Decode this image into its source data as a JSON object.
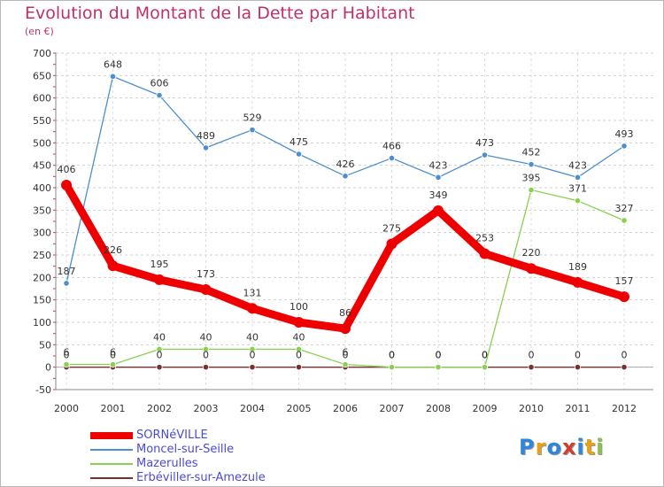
{
  "title": "Evolution du Montant de la Dette par Habitant",
  "subtitle": "(en €)",
  "logo": {
    "text": "Proxiti",
    "letter_colors": [
      "#2e86de",
      "#e8a014",
      "#2e86de",
      "#d23c2c",
      "#2e86de",
      "#e8a014",
      "#8bc34a"
    ]
  },
  "chart_data": {
    "type": "line",
    "title": "Evolution du Montant de la Dette par Habitant",
    "ylabel": "(en €)",
    "xlabel": "",
    "x": [
      "2000",
      "2001",
      "2002",
      "2003",
      "2004",
      "2005",
      "2006",
      "2007",
      "2008",
      "2009",
      "2010",
      "2011",
      "2012"
    ],
    "ylim": [
      -50,
      700
    ],
    "yticks": [
      -50,
      0,
      50,
      100,
      150,
      200,
      250,
      300,
      350,
      400,
      450,
      500,
      550,
      600,
      650,
      700
    ],
    "grid": "horizontal-dashed",
    "legend": "bottom-left",
    "series": [
      {
        "name": "SORNéVILLE",
        "color": "#ee0000",
        "thick": true,
        "values": [
          406,
          226,
          195,
          173,
          131,
          100,
          86,
          275,
          349,
          253,
          220,
          189,
          157
        ]
      },
      {
        "name": "Moncel-sur-Seille",
        "color": "#4d8fcc",
        "thick": false,
        "values": [
          187,
          648,
          606,
          489,
          529,
          475,
          426,
          466,
          423,
          473,
          452,
          423,
          493
        ]
      },
      {
        "name": "Mazerulles",
        "color": "#88d050",
        "thick": false,
        "values": [
          6,
          6,
          40,
          40,
          40,
          40,
          6,
          0,
          0,
          0,
          395,
          371,
          327
        ]
      },
      {
        "name": "Erbéviller-sur-Amezule",
        "color": "#7a2e2e",
        "thick": false,
        "values": [
          0,
          0,
          0,
          0,
          0,
          0,
          0,
          0,
          0,
          0,
          0,
          0,
          0
        ]
      }
    ],
    "labels": [
      [
        "406",
        "226",
        "195",
        "173",
        "131",
        "100",
        "86",
        "275",
        "349",
        "253",
        "220",
        "189",
        "157"
      ],
      [
        "187",
        "648",
        "606",
        "489",
        "529",
        "475",
        "426",
        "466",
        "423",
        "473",
        "452",
        "423",
        "493"
      ],
      [
        "6",
        "6",
        "40",
        "40",
        "40",
        "40",
        "6",
        "0",
        "0",
        "0",
        "395",
        "371",
        "327"
      ],
      [
        "0",
        "0",
        "0",
        "0",
        "0",
        "0",
        "0",
        "0",
        "0",
        "0",
        "0",
        "0",
        "0"
      ]
    ]
  }
}
